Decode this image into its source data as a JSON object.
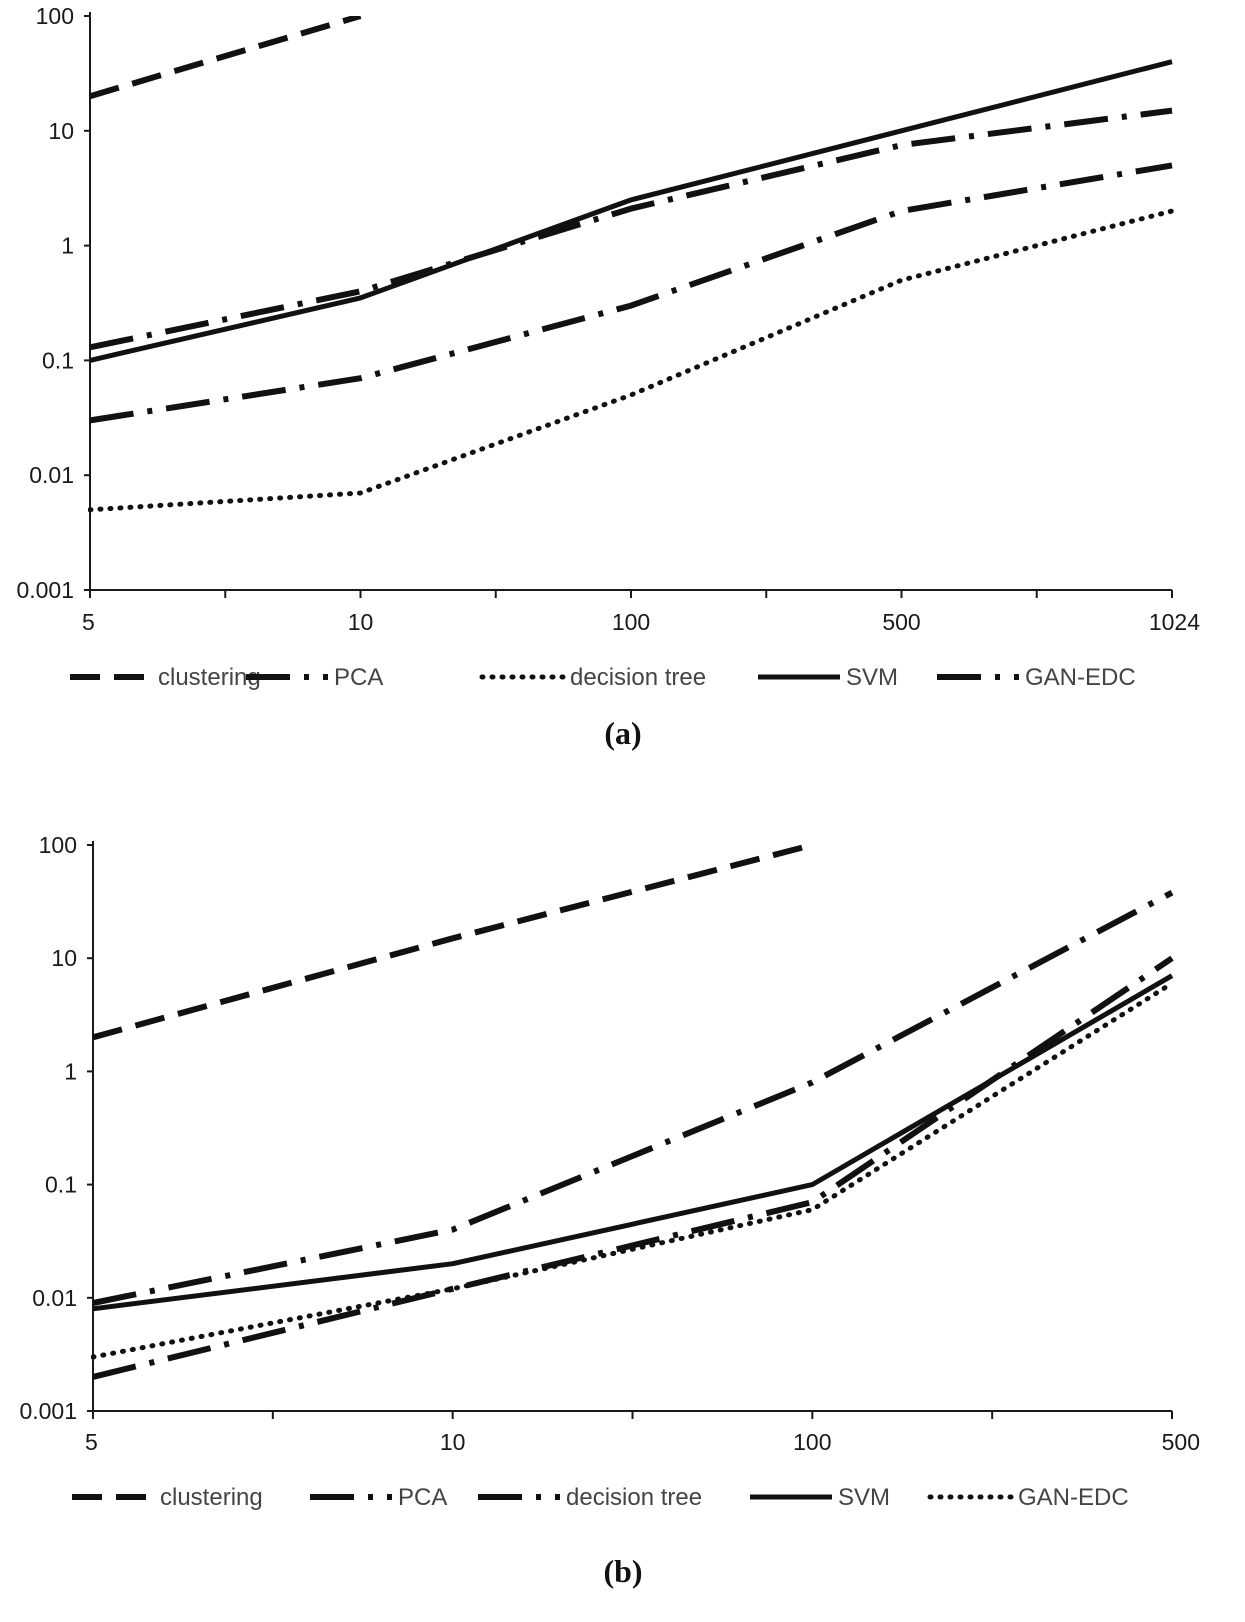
{
  "chart_data": [
    {
      "type": "line",
      "caption": "(a)",
      "y_scale": "log",
      "ylim": [
        0.001,
        100
      ],
      "y_ticks": [
        "0.001",
        "0.01",
        "0.1",
        "1",
        "10",
        "100"
      ],
      "categories": [
        "5",
        "10",
        "100",
        "500",
        "1024"
      ],
      "grid": false,
      "legend_position": "bottom",
      "series": [
        {
          "name": "clustering",
          "style": "dash",
          "values": [
            20,
            100,
            null,
            null,
            null
          ]
        },
        {
          "name": "PCA",
          "style": "dash-dot",
          "values": [
            0.13,
            0.4,
            2.1,
            7.5,
            15
          ]
        },
        {
          "name": "decision tree",
          "style": "dot",
          "values": [
            0.005,
            0.007,
            0.05,
            0.5,
            2
          ]
        },
        {
          "name": "SVM",
          "style": "solid",
          "values": [
            0.1,
            0.35,
            2.5,
            10,
            40
          ]
        },
        {
          "name": "GAN-EDC",
          "style": "dash-dot",
          "values": [
            0.03,
            0.07,
            0.3,
            2,
            5
          ]
        }
      ]
    },
    {
      "type": "line",
      "caption": "(b)",
      "y_scale": "log",
      "ylim": [
        0.001,
        100
      ],
      "y_ticks": [
        "0.001",
        "0.01",
        "0.1",
        "1",
        "10",
        "100"
      ],
      "categories": [
        "5",
        "10",
        "100",
        "500"
      ],
      "grid": false,
      "legend_position": "bottom",
      "series": [
        {
          "name": "clustering",
          "style": "dash",
          "values": [
            2,
            15,
            100,
            null
          ]
        },
        {
          "name": "PCA",
          "style": "dash-dot",
          "values": [
            0.009,
            0.04,
            0.8,
            38
          ]
        },
        {
          "name": "decision tree",
          "style": "dash-dot",
          "values": [
            0.002,
            0.012,
            0.07,
            10
          ]
        },
        {
          "name": "SVM",
          "style": "solid",
          "values": [
            0.008,
            0.02,
            0.1,
            7
          ]
        },
        {
          "name": "GAN-EDC",
          "style": "dot",
          "values": [
            0.003,
            0.012,
            0.06,
            6
          ]
        }
      ]
    }
  ]
}
